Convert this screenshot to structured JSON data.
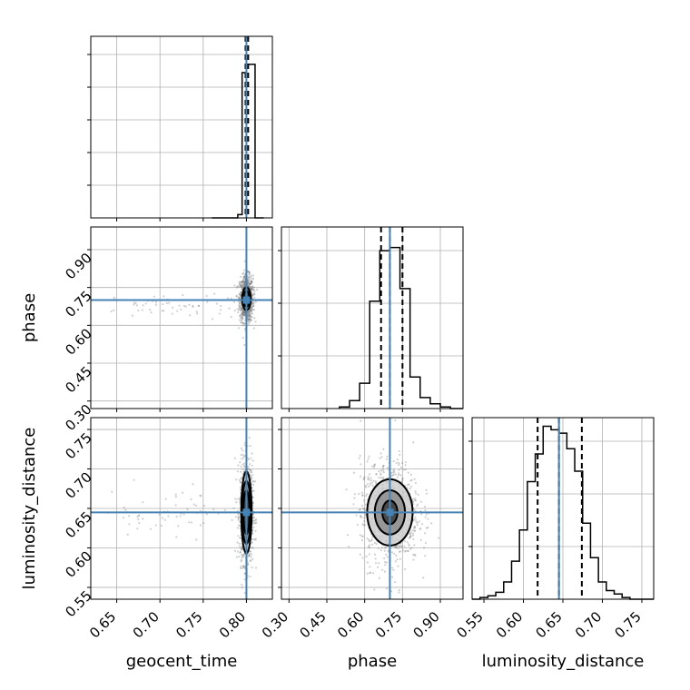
{
  "chart_data": {
    "type": "corner",
    "parameters": [
      {
        "name": "geocent_time",
        "xlabel": "geocent_time",
        "range": [
          0.62,
          0.83
        ],
        "ticks": [
          0.65,
          0.7,
          0.75,
          0.8
        ],
        "tick_labels": [
          "0.65",
          "0.70",
          "0.75",
          "0.80"
        ],
        "truth": 0.8,
        "quantiles": [
          0.799,
          0.8,
          0.802
        ],
        "hist_edges": [
          0.76,
          0.79,
          0.795,
          0.8,
          0.805,
          0.81,
          0.82
        ],
        "hist_counts": [
          0.0,
          0.02,
          0.88,
          0.93,
          0.93,
          0.0
        ],
        "hist_max": 1.1
      },
      {
        "name": "phase",
        "xlabel": "phase",
        "ylabel": "phase",
        "range": [
          0.27,
          0.99
        ],
        "ticks": [
          0.3,
          0.45,
          0.6,
          0.75,
          0.9
        ],
        "tick_labels": [
          "0.30",
          "0.45",
          "0.60",
          "0.75",
          "0.90"
        ],
        "truth": 0.7,
        "quantiles": [
          0.665,
          0.7,
          0.75
        ],
        "hist_edges": [
          0.5,
          0.54,
          0.58,
          0.62,
          0.66,
          0.7,
          0.74,
          0.78,
          0.82,
          0.86,
          0.9,
          0.94,
          0.99
        ],
        "hist_counts": [
          0.01,
          0.05,
          0.16,
          0.68,
          1.0,
          1.02,
          0.76,
          0.2,
          0.07,
          0.03,
          0.01,
          0.0
        ],
        "hist_max": 1.15
      },
      {
        "name": "luminosity_distance",
        "xlabel": "luminosity_distance",
        "ylabel": "luminosity_distance",
        "range": [
          0.535,
          0.765
        ],
        "ticks": [
          0.55,
          0.6,
          0.65,
          0.7,
          0.75
        ],
        "tick_labels": [
          "0.55",
          "0.60",
          "0.65",
          "0.70",
          "0.75"
        ],
        "truth": 0.645,
        "quantiles": [
          0.618,
          0.645,
          0.674
        ],
        "hist_edges": [
          0.535,
          0.545,
          0.555,
          0.565,
          0.575,
          0.585,
          0.595,
          0.605,
          0.615,
          0.625,
          0.635,
          0.645,
          0.655,
          0.665,
          0.675,
          0.685,
          0.695,
          0.705,
          0.715,
          0.725,
          0.735,
          0.745,
          0.755,
          0.765
        ],
        "hist_counts": [
          0.0,
          0.01,
          0.02,
          0.04,
          0.1,
          0.22,
          0.4,
          0.68,
          0.84,
          1.0,
          0.98,
          0.96,
          0.87,
          0.74,
          0.44,
          0.24,
          0.1,
          0.05,
          0.03,
          0.01,
          0.0,
          0.0,
          0.0
        ],
        "hist_max": 1.05
      }
    ],
    "pairs": [
      {
        "x": "geocent_time",
        "y": "phase",
        "center": [
          0.8,
          0.705
        ],
        "spread": [
          0.003,
          0.035
        ],
        "tail": {
          "x_range": [
            0.64,
            0.79
          ],
          "y": 0.68
        },
        "contours": [
          [
            0.0035,
            0.032
          ],
          [
            0.005,
            0.045
          ]
        ]
      },
      {
        "x": "geocent_time",
        "y": "luminosity_distance",
        "center": [
          0.8,
          0.645
        ],
        "spread": [
          0.003,
          0.025
        ],
        "tail": {
          "x_range": [
            0.64,
            0.79
          ],
          "y": 0.645
        },
        "contours": [
          [
            0.0035,
            0.028
          ],
          [
            0.005,
            0.04
          ],
          [
            0.006,
            0.052
          ]
        ]
      },
      {
        "x": "phase",
        "y": "luminosity_distance",
        "center": [
          0.7,
          0.645
        ],
        "spread": [
          0.045,
          0.025
        ],
        "contours": [
          [
            0.03,
            0.015
          ],
          [
            0.06,
            0.028
          ],
          [
            0.09,
            0.042
          ]
        ]
      }
    ]
  }
}
